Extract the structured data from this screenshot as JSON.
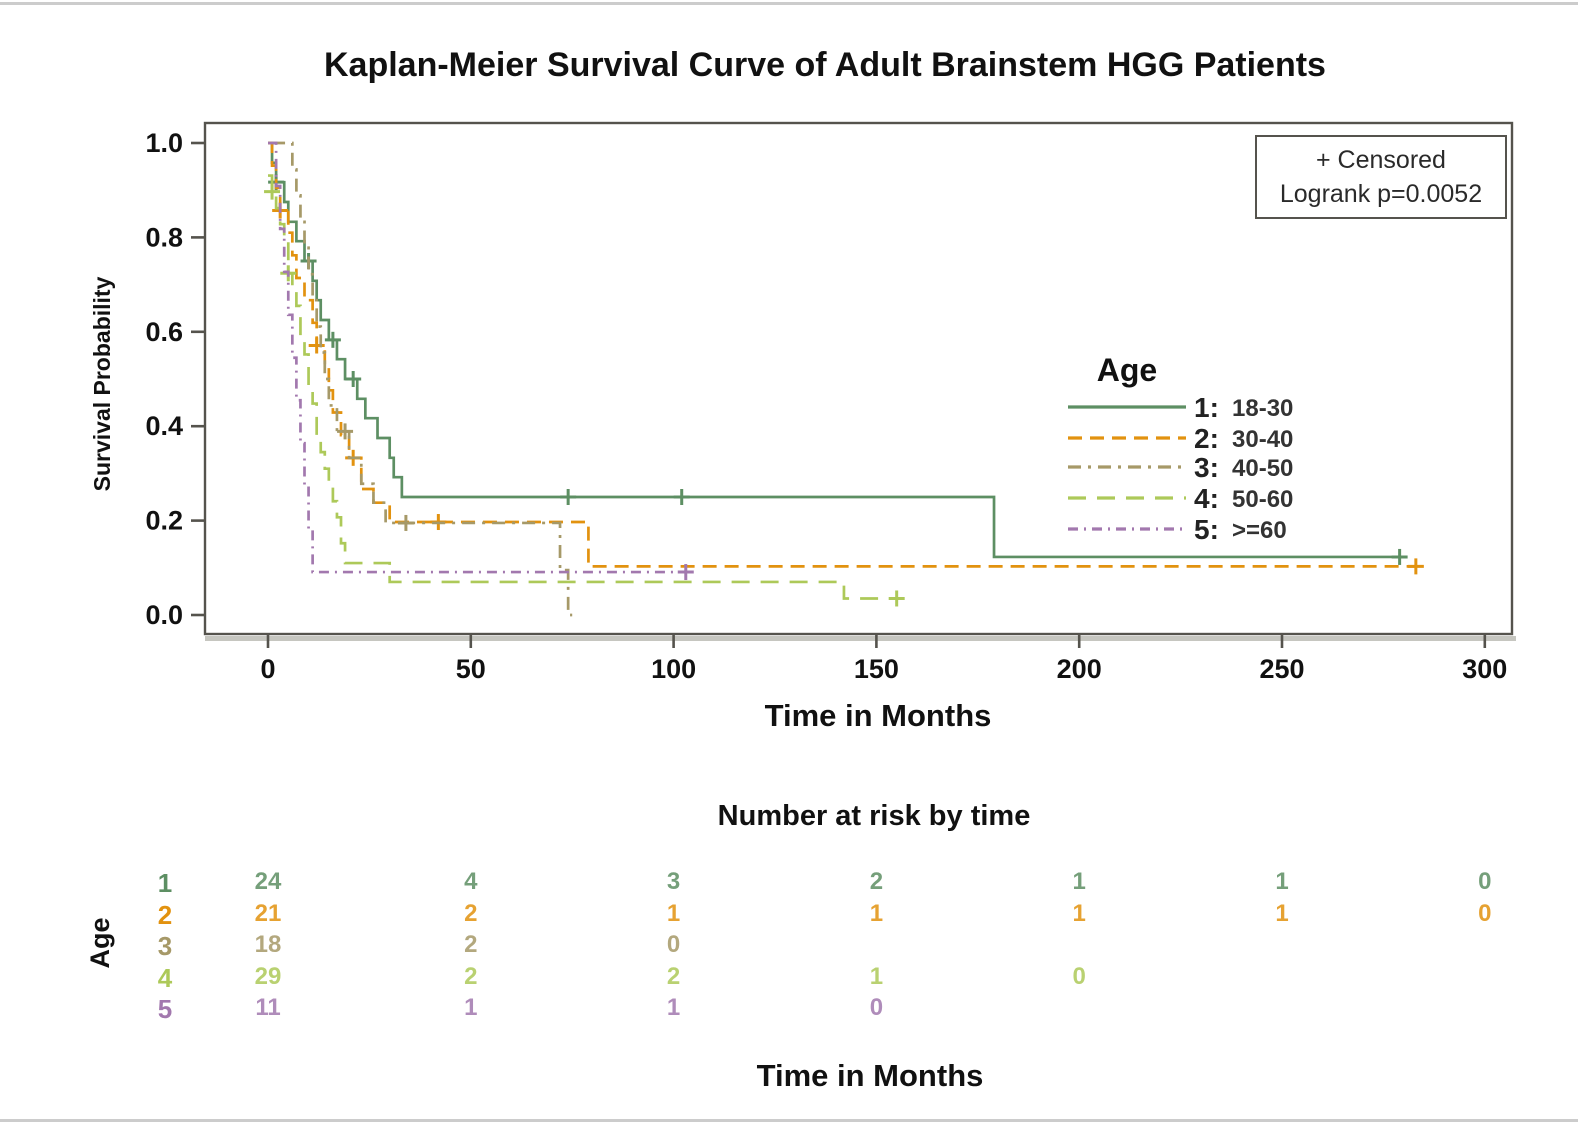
{
  "page_title": "Kaplan-Meier Survival Curve of Adult Brainstem HGG Patients",
  "chart_data": {
    "type": "line",
    "subtype": "kaplan-meier-step",
    "title": "Kaplan-Meier Survival Curve of Adult Brainstem HGG Patients",
    "xlabel": "Time in Months",
    "ylabel": "Survival Probability",
    "xlim": [
      -15.5,
      306
    ],
    "ylim": [
      -0.04,
      1.04
    ],
    "xticks": [
      0,
      50,
      100,
      150,
      200,
      250,
      300
    ],
    "yticks": [
      {
        "label": "1.0",
        "value": 1.0
      },
      {
        "label": "0.8",
        "value": 0.8
      },
      {
        "label": "0.6",
        "value": 0.6
      },
      {
        "label": "0.4",
        "value": 0.4
      },
      {
        "label": "0.2",
        "value": 0.2
      },
      {
        "label": "0.0",
        "value": 0.0
      }
    ],
    "grid": false,
    "annotation": {
      "line1": "+ Censored",
      "line2": "Logrank p=0.0052"
    },
    "legend_title": "Age",
    "legend_position": "center-right",
    "series": [
      {
        "group": "1",
        "label_prefix": "1:",
        "label": "18-30",
        "color": "#5d8f63",
        "dash": "",
        "points": [
          [
            0,
            1
          ],
          [
            1,
            0.958
          ],
          [
            2,
            0.917
          ],
          [
            4,
            0.875
          ],
          [
            5,
            0.833
          ],
          [
            7,
            0.792
          ],
          [
            9,
            0.75
          ],
          [
            11,
            0.708
          ],
          [
            12,
            0.667
          ],
          [
            13,
            0.625
          ],
          [
            15,
            0.583
          ],
          [
            17,
            0.542
          ],
          [
            19,
            0.5
          ],
          [
            22,
            0.458
          ],
          [
            24,
            0.417
          ],
          [
            27,
            0.375
          ],
          [
            30,
            0.333
          ],
          [
            31,
            0.292
          ],
          [
            33,
            0.25
          ],
          [
            179,
            0.25
          ],
          [
            179,
            0.123
          ],
          [
            280,
            0.123
          ]
        ],
        "censors": [
          [
            2,
            0.917
          ],
          [
            10,
            0.75
          ],
          [
            16,
            0.583
          ],
          [
            21,
            0.5
          ],
          [
            74,
            0.25
          ],
          [
            102,
            0.25
          ],
          [
            279,
            0.123
          ]
        ]
      },
      {
        "group": "2",
        "label_prefix": "2:",
        "label": "30-40",
        "color": "#e2920f",
        "dash": "14 8",
        "points": [
          [
            0,
            1
          ],
          [
            1,
            0.952
          ],
          [
            2,
            0.905
          ],
          [
            3,
            0.857
          ],
          [
            5,
            0.81
          ],
          [
            6,
            0.762
          ],
          [
            7,
            0.714
          ],
          [
            9,
            0.667
          ],
          [
            11,
            0.619
          ],
          [
            12,
            0.571
          ],
          [
            14,
            0.524
          ],
          [
            15,
            0.476
          ],
          [
            16,
            0.429
          ],
          [
            18,
            0.381
          ],
          [
            20,
            0.333
          ],
          [
            23,
            0.267
          ],
          [
            26,
            0.238
          ],
          [
            30,
            0.197
          ],
          [
            79,
            0.197
          ],
          [
            79,
            0.103
          ],
          [
            283,
            0.103
          ]
        ],
        "censors": [
          [
            3,
            0.857
          ],
          [
            12,
            0.571
          ],
          [
            21,
            0.333
          ],
          [
            42,
            0.197
          ],
          [
            283,
            0.103
          ]
        ]
      },
      {
        "group": "3",
        "label_prefix": "3:",
        "label": "40-50",
        "color": "#a69968",
        "dash": "13 7 3 7",
        "points": [
          [
            1,
            1
          ],
          [
            6,
            1
          ],
          [
            6,
            0.944
          ],
          [
            7,
            0.889
          ],
          [
            8,
            0.833
          ],
          [
            9,
            0.778
          ],
          [
            10,
            0.722
          ],
          [
            11,
            0.667
          ],
          [
            12,
            0.611
          ],
          [
            13,
            0.556
          ],
          [
            14,
            0.5
          ],
          [
            15,
            0.444
          ],
          [
            17,
            0.389
          ],
          [
            20,
            0.333
          ],
          [
            23,
            0.278
          ],
          [
            26,
            0.238
          ],
          [
            29,
            0.195
          ],
          [
            72,
            0.195
          ],
          [
            72,
            0.095
          ],
          [
            74,
            0.095
          ],
          [
            74,
            0
          ],
          [
            75,
            0
          ]
        ],
        "censors": [
          [
            19,
            0.389
          ],
          [
            34,
            0.195
          ]
        ]
      },
      {
        "group": "4",
        "label_prefix": "4:",
        "label": "50-60",
        "color": "#adc959",
        "dash": "18 11",
        "points": [
          [
            0,
            0.931
          ],
          [
            1,
            0.897
          ],
          [
            2,
            0.862
          ],
          [
            3,
            0.828
          ],
          [
            4,
            0.793
          ],
          [
            5,
            0.724
          ],
          [
            6,
            0.69
          ],
          [
            7,
            0.655
          ],
          [
            8,
            0.586
          ],
          [
            9,
            0.552
          ],
          [
            10,
            0.483
          ],
          [
            11,
            0.448
          ],
          [
            12,
            0.379
          ],
          [
            13,
            0.345
          ],
          [
            14,
            0.31
          ],
          [
            15,
            0.276
          ],
          [
            16,
            0.241
          ],
          [
            17,
            0.207
          ],
          [
            18,
            0.152
          ],
          [
            19,
            0.11
          ],
          [
            30,
            0.11
          ],
          [
            30,
            0.07
          ],
          [
            142,
            0.07
          ],
          [
            142,
            0.035
          ],
          [
            156,
            0.035
          ]
        ],
        "censors": [
          [
            1,
            0.897
          ],
          [
            5,
            0.724
          ],
          [
            155,
            0.035
          ]
        ]
      },
      {
        "group": "5",
        "label_prefix": "5:",
        "label": ">=60",
        "color": "#a278ae",
        "dash": "10 6 2 6",
        "points": [
          [
            0,
            1
          ],
          [
            2,
            1
          ],
          [
            2,
            0.909
          ],
          [
            3,
            0.818
          ],
          [
            4,
            0.727
          ],
          [
            5,
            0.636
          ],
          [
            6,
            0.545
          ],
          [
            7,
            0.455
          ],
          [
            8,
            0.364
          ],
          [
            9,
            0.273
          ],
          [
            10,
            0.182
          ],
          [
            11,
            0.091
          ],
          [
            105,
            0.091
          ]
        ],
        "censors": [
          [
            103,
            0.091
          ]
        ]
      }
    ],
    "risk_table": {
      "title": "Number at risk by time",
      "axis_label": "Age",
      "xlabel": "Time in Months",
      "times": [
        0,
        50,
        100,
        150,
        200,
        250,
        300
      ],
      "rows": [
        {
          "group": "1",
          "counts": [
            "24",
            "4",
            "3",
            "2",
            "1",
            "1",
            "0"
          ]
        },
        {
          "group": "2",
          "counts": [
            "21",
            "2",
            "1",
            "1",
            "1",
            "1",
            "0"
          ]
        },
        {
          "group": "3",
          "counts": [
            "18",
            "2",
            "0",
            "",
            "",
            "",
            ""
          ]
        },
        {
          "group": "4",
          "counts": [
            "29",
            "2",
            "2",
            "1",
            "0",
            "",
            ""
          ]
        },
        {
          "group": "5",
          "counts": [
            "11",
            "1",
            "1",
            "0",
            "",
            "",
            ""
          ]
        }
      ]
    }
  }
}
